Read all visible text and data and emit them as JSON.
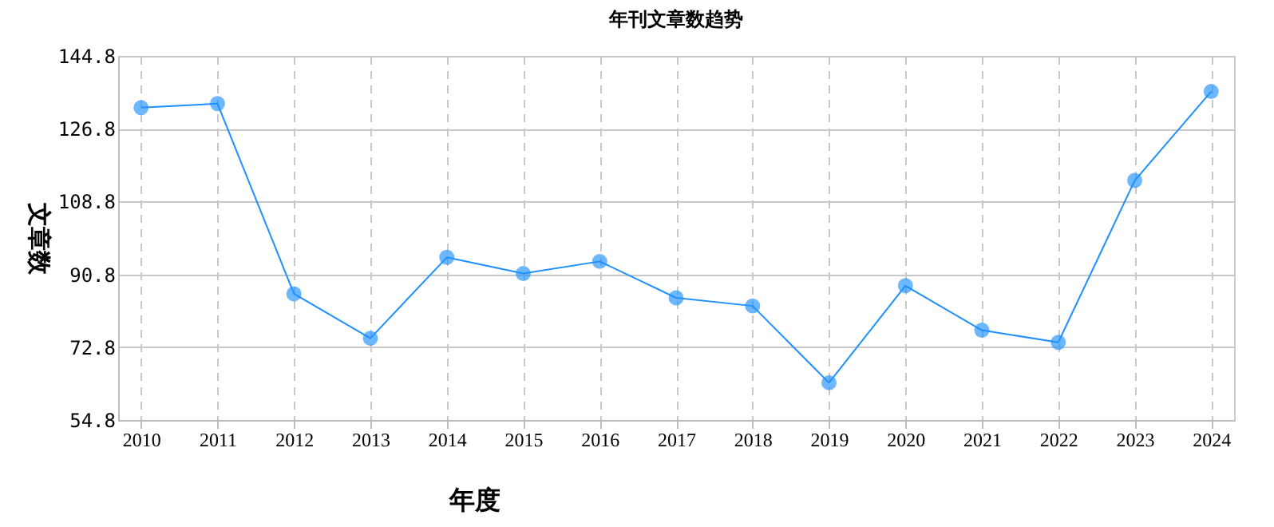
{
  "chart_data": {
    "type": "line",
    "title": "年刊文章数趋势",
    "xlabel": "年度",
    "ylabel": "文章数",
    "categories": [
      "2010",
      "2011",
      "2012",
      "2013",
      "2014",
      "2015",
      "2016",
      "2017",
      "2018",
      "2019",
      "2020",
      "2021",
      "2022",
      "2023",
      "2024"
    ],
    "series": [
      {
        "color": "#1e90ff",
        "values": [
          132,
          133,
          86,
          75,
          95,
          91,
          94,
          85,
          83,
          64,
          88,
          77,
          74,
          114,
          136
        ]
      }
    ],
    "ylim": [
      54.8,
      144.8
    ],
    "yticks": [
      54.8,
      72.8,
      90.8,
      108.8,
      126.8,
      144.8
    ],
    "grid": true,
    "marker": "circle",
    "line_style": "solid",
    "legend": false
  }
}
